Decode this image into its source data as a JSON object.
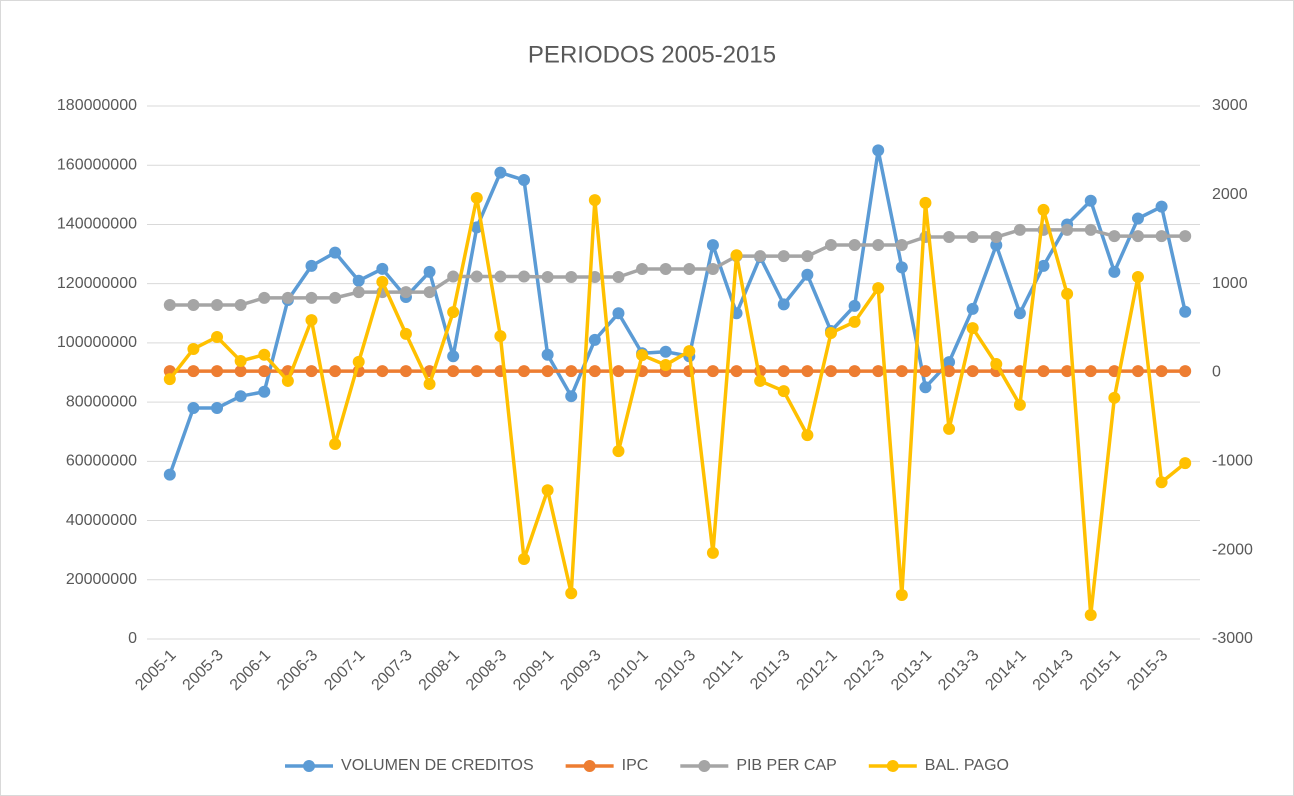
{
  "chart_data": {
    "type": "line",
    "title": "PERIODOS  2005-2015",
    "categories": [
      "2005-1",
      null,
      "2005-3",
      null,
      "2006-1",
      null,
      "2006-3",
      null,
      "2007-1",
      null,
      "2007-3",
      null,
      "2008-1",
      null,
      "2008-3",
      null,
      "2009-1",
      null,
      "2009-3",
      null,
      "2010-1",
      null,
      "2010-3",
      null,
      "2011-1",
      null,
      "2011-3",
      null,
      "2012-1",
      null,
      "2012-3",
      null,
      "2013-1",
      null,
      "2013-3",
      null,
      "2014-1",
      null,
      "2014-3",
      null,
      "2015-1",
      null,
      "2015-3",
      null
    ],
    "ylim": [
      0,
      180000000
    ],
    "yticks": [
      0,
      20000000,
      40000000,
      60000000,
      80000000,
      100000000,
      120000000,
      140000000,
      160000000,
      180000000
    ],
    "y2lim": [
      -3000,
      3000
    ],
    "y2ticks": [
      -3000,
      -2000,
      -1000,
      0,
      1000,
      2000,
      3000
    ],
    "grid": true,
    "legend": "bottom",
    "series": [
      {
        "name": "VOLUMEN DE CREDITOS",
        "color": "#5b9bd5",
        "values": [
          55500000,
          78000000,
          78000000,
          82000000,
          83500000,
          114500000,
          126000000,
          130500000,
          121000000,
          125000000,
          115500000,
          124000000,
          95500000,
          139000000,
          157500000,
          155000000,
          96000000,
          82000000,
          101000000,
          110000000,
          96500000,
          97000000,
          95500000,
          133000000,
          110000000,
          129000000,
          113000000,
          123000000,
          104000000,
          112500000,
          165000000,
          125500000,
          85000000,
          93500000,
          111500000,
          133000000,
          110000000,
          126000000,
          140000000,
          148000000,
          124000000,
          142000000,
          146000000,
          110500000
        ]
      },
      {
        "name": "IPC",
        "color": "#ed7d31",
        "axis": "y2",
        "values": [
          15,
          15,
          15,
          15,
          15,
          15,
          15,
          15,
          15,
          15,
          15,
          15,
          15,
          15,
          15,
          15,
          15,
          15,
          15,
          15,
          15,
          15,
          15,
          15,
          15,
          15,
          15,
          15,
          15,
          15,
          15,
          15,
          15,
          15,
          15,
          15,
          15,
          15,
          15,
          15,
          15,
          15,
          15,
          15
        ]
      },
      {
        "name": "PIB PER CAP",
        "color": "#a5a5a5",
        "axis": "y2",
        "values": [
          760,
          760,
          760,
          760,
          840,
          840,
          840,
          840,
          905,
          905,
          905,
          905,
          1080,
          1080,
          1080,
          1080,
          1075,
          1075,
          1075,
          1075,
          1165,
          1165,
          1165,
          1165,
          1310,
          1310,
          1310,
          1310,
          1435,
          1435,
          1435,
          1435,
          1525,
          1525,
          1525,
          1525,
          1605,
          1605,
          1605,
          1605,
          1535,
          1535,
          1535,
          1535
        ]
      },
      {
        "name": "BAL. PAGO",
        "color": "#ffc000",
        "axis": "y2",
        "values": [
          -75,
          265,
          400,
          130,
          200,
          -95,
          590,
          -805,
          120,
          1020,
          435,
          -130,
          680,
          1965,
          410,
          -2100,
          -1325,
          -2485,
          1940,
          -885,
          195,
          85,
          240,
          -2030,
          1320,
          -95,
          -210,
          -705,
          445,
          570,
          950,
          -2505,
          1910,
          -635,
          500,
          95,
          -365,
          1830,
          885,
          -2730,
          -285,
          1075,
          -1235,
          -1020
        ]
      }
    ]
  }
}
